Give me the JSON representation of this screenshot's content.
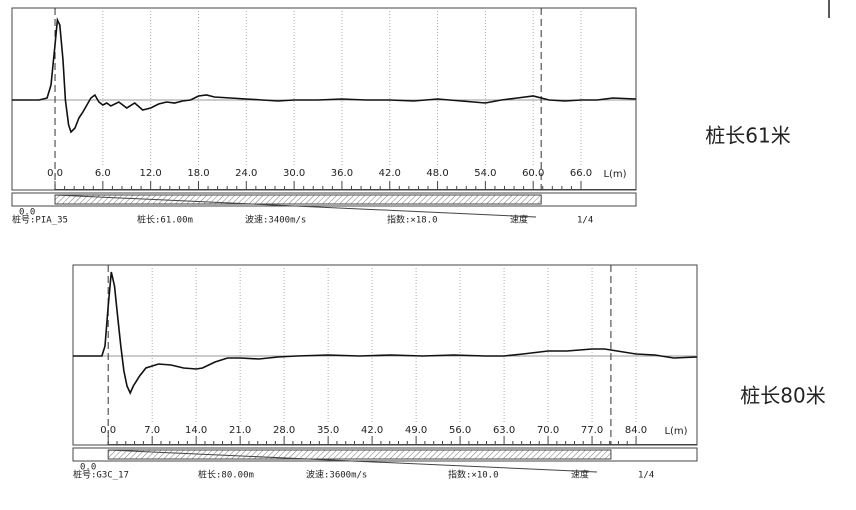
{
  "chart_data": [
    {
      "type": "line",
      "xlabel": "L(m)",
      "caption": "桩长61米",
      "color": "#111111",
      "x": [
        -5.4,
        -2,
        -1,
        -0.5,
        0,
        0.3,
        0.6,
        1,
        1.3,
        1.7,
        2,
        2.5,
        3,
        3.5,
        4,
        4.5,
        5,
        5.5,
        6,
        6.5,
        7,
        8,
        9,
        10,
        11,
        12,
        13,
        14,
        15,
        16,
        17,
        18,
        19,
        20,
        22,
        24,
        26,
        28,
        30,
        33,
        36,
        39,
        42,
        45,
        48,
        51,
        54,
        56,
        58,
        60,
        62,
        64,
        66,
        68,
        70,
        72.9
      ],
      "values": [
        0,
        0,
        2,
        15,
        55,
        80,
        75,
        40,
        0,
        -25,
        -32,
        -28,
        -18,
        -12,
        -5,
        2,
        5,
        -2,
        -5,
        -3,
        -6,
        -2,
        -8,
        -3,
        -10,
        -8,
        -4,
        -2,
        -3,
        -1,
        0,
        4,
        5,
        3,
        2,
        1,
        0,
        -1,
        0,
        0,
        1,
        0,
        0,
        -1,
        1,
        -1,
        -3,
        0,
        2,
        4,
        0,
        -1,
        0,
        0,
        2,
        1
      ],
      "xlim": [
        -5.4,
        72.9
      ],
      "ylim": [
        -90,
        92
      ],
      "xticks": [
        {
          "value": 0,
          "label": "0.0"
        },
        {
          "value": 6,
          "label": "6.0"
        },
        {
          "value": 12,
          "label": "12.0"
        },
        {
          "value": 18,
          "label": "18.0"
        },
        {
          "value": 24,
          "label": "24.0"
        },
        {
          "value": 30,
          "label": "30.0"
        },
        {
          "value": 36,
          "label": "36.0"
        },
        {
          "value": 42,
          "label": "42.0"
        },
        {
          "value": 48,
          "label": "48.0"
        },
        {
          "value": 54,
          "label": "54.0"
        },
        {
          "value": 60,
          "label": "60.0"
        },
        {
          "value": 66,
          "label": "66.0"
        }
      ],
      "markers": [
        0,
        61
      ],
      "scale_start": "0.0",
      "info": [
        "桩号:PIA_35",
        "桩长:61.00m",
        "波速:3400m/s",
        "指数:×18.0",
        "速度",
        "1/4"
      ],
      "grid": true
    },
    {
      "type": "line",
      "xlabel": "L(m)",
      "caption": "桩长80米",
      "color": "#111111",
      "x": [
        -5.6,
        -1,
        -0.5,
        0,
        0.5,
        1,
        1.5,
        2,
        2.5,
        3,
        3.5,
        4,
        5,
        6,
        7,
        8,
        10,
        12,
        14,
        15,
        17,
        19,
        21,
        24,
        27,
        30,
        35,
        40,
        45,
        50,
        55,
        60,
        63,
        66,
        70,
        73,
        77,
        79,
        81,
        84,
        87,
        90,
        93.7
      ],
      "values": [
        0,
        0,
        10,
        50,
        84,
        70,
        40,
        10,
        -15,
        -30,
        -37,
        -30,
        -20,
        -12,
        -10,
        -8,
        -9,
        -12,
        -13,
        -12,
        -6,
        -2,
        -2,
        -3,
        -1,
        0,
        1,
        0,
        1,
        0,
        1,
        0,
        0,
        2,
        5,
        5,
        7,
        7,
        5,
        2,
        1,
        -2,
        -1
      ],
      "xlim": [
        -5.6,
        93.7
      ],
      "ylim": [
        -89,
        91
      ],
      "xticks": [
        {
          "value": 0,
          "label": "0.0"
        },
        {
          "value": 7,
          "label": "7.0"
        },
        {
          "value": 14,
          "label": "14.0"
        },
        {
          "value": 21,
          "label": "21.0"
        },
        {
          "value": 28,
          "label": "28.0"
        },
        {
          "value": 35,
          "label": "35.0"
        },
        {
          "value": 42,
          "label": "42.0"
        },
        {
          "value": 49,
          "label": "49.0"
        },
        {
          "value": 56,
          "label": "56.0"
        },
        {
          "value": 63,
          "label": "63.0"
        },
        {
          "value": 70,
          "label": "70.0"
        },
        {
          "value": 77,
          "label": "77.0"
        },
        {
          "value": 84,
          "label": "84.0"
        }
      ],
      "markers": [
        0,
        80
      ],
      "scale_start": "0.0",
      "info": [
        "桩号:G3C_17",
        "桩长:80.00m",
        "波速:3600m/s",
        "指数:×10.0",
        "速度",
        "1/4"
      ],
      "grid": true
    }
  ]
}
